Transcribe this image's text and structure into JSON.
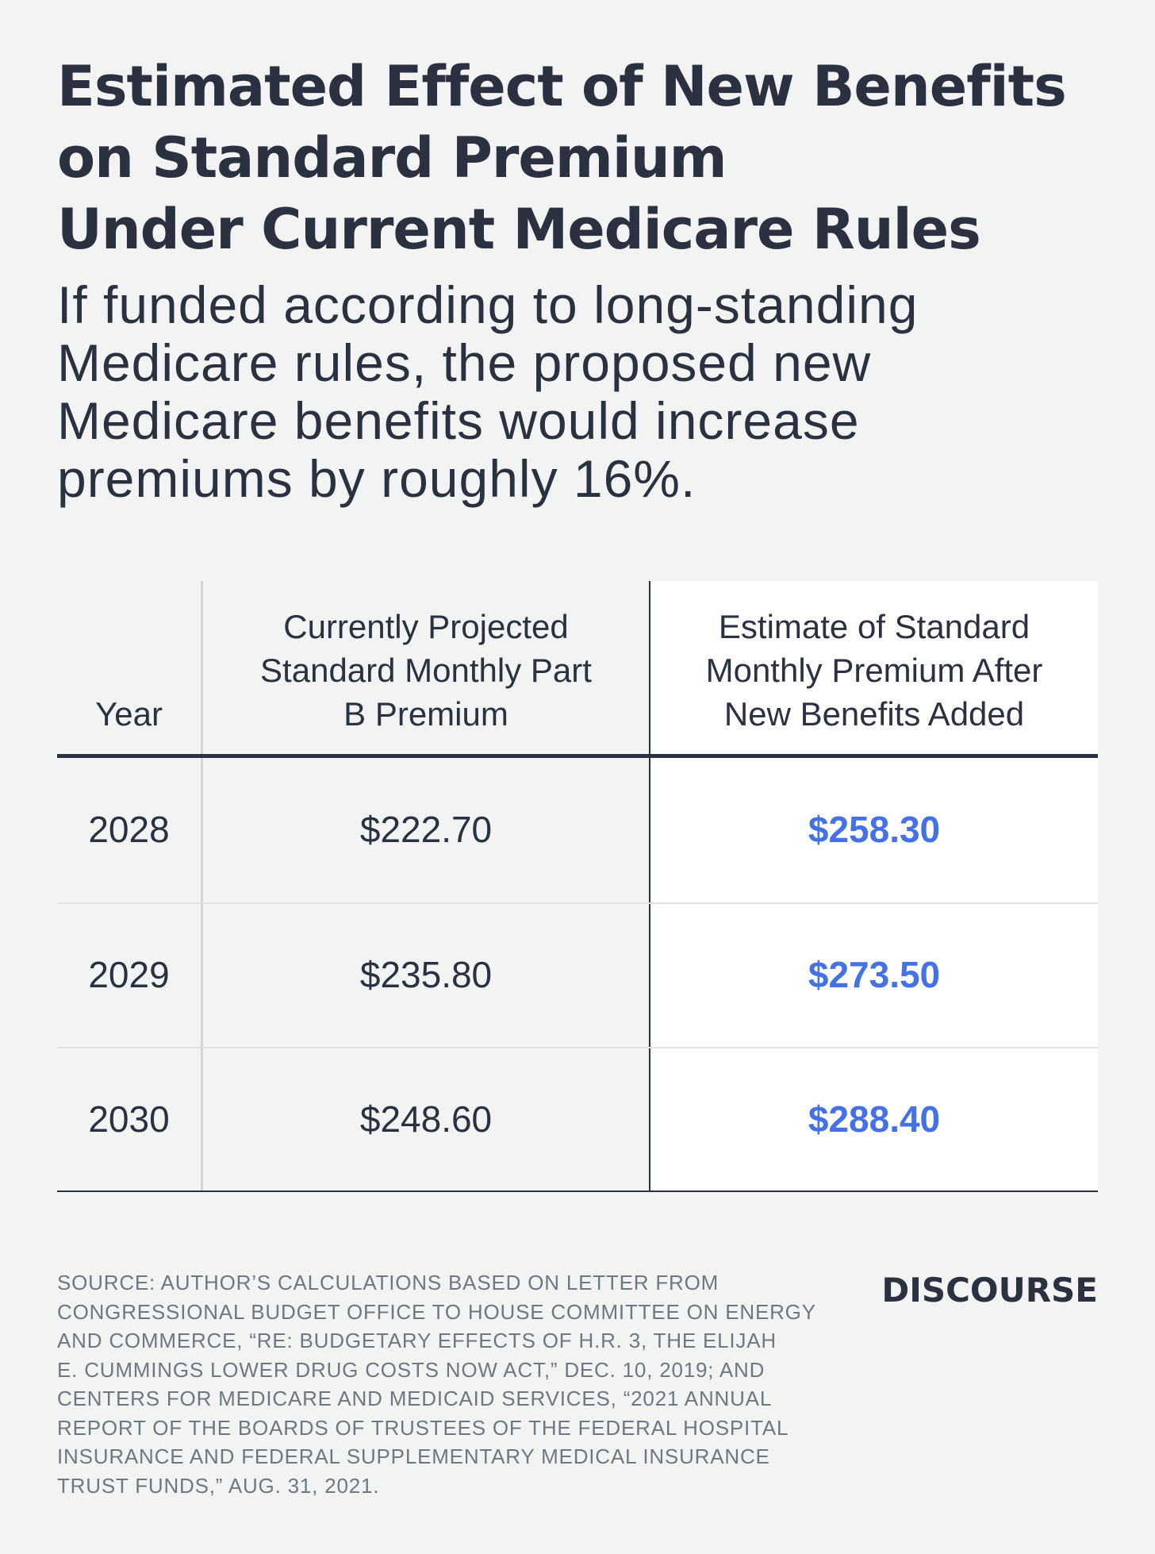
{
  "title_lines": [
    "Estimated Effect of New Benefits",
    "on Standard Premium",
    "Under Current Medicare Rules"
  ],
  "subtitle_lines": [
    "If funded according to long-standing",
    "Medicare rules, the proposed new",
    "Medicare benefits would increase",
    "premiums by roughly 16%."
  ],
  "chart_data": {
    "type": "table",
    "title": "Estimated Effect of New Benefits on Standard Premium Under Current Medicare Rules",
    "subtitle": "If funded according to long-standing Medicare rules, the proposed new Medicare benefits would increase premiums by roughly 16%.",
    "columns": [
      "Year",
      "Currently Projected Standard Monthly Part B Premium",
      "Estimate of Standard Monthly Premium After New Benefits Added"
    ],
    "header_lines": {
      "year": [
        "Year"
      ],
      "current": [
        "Currently Projected",
        "Standard Monthly Part",
        "B Premium"
      ],
      "estimate": [
        "Estimate of Standard",
        "Monthly Premium After",
        "New Benefits Added"
      ]
    },
    "rows": [
      {
        "year": "2028",
        "current": "$222.70",
        "estimate": "$258.30"
      },
      {
        "year": "2029",
        "current": "$235.80",
        "estimate": "$273.50"
      },
      {
        "year": "2030",
        "current": "$248.60",
        "estimate": "$288.40"
      }
    ],
    "highlight_color": "#4472e6"
  },
  "source_lines": [
    "SOURCE: AUTHOR’S CALCULATIONS BASED ON LETTER FROM",
    "CONGRESSIONAL BUDGET OFFICE TO HOUSE COMMITTEE ON ENERGY",
    "AND COMMERCE, “RE: BUDGETARY EFFECTS OF H.R. 3, THE ELIJAH",
    "E. CUMMINGS LOWER DRUG COSTS NOW ACT,” DEC. 10, 2019; AND",
    "CENTERS FOR MEDICARE AND MEDICAID SERVICES,  “2021 ANNUAL",
    "REPORT OF THE BOARDS OF TRUSTEES OF THE FEDERAL HOSPITAL",
    "INSURANCE AND FEDERAL SUPPLEMENTARY MEDICAL INSURANCE",
    "TRUST FUNDS,” AUG. 31, 2021."
  ],
  "brand": "DISCOURSE",
  "colors": {
    "background": "#f2f3f3",
    "text": "#2b3140",
    "accent": "#4472e6",
    "source_text": "#717780"
  }
}
